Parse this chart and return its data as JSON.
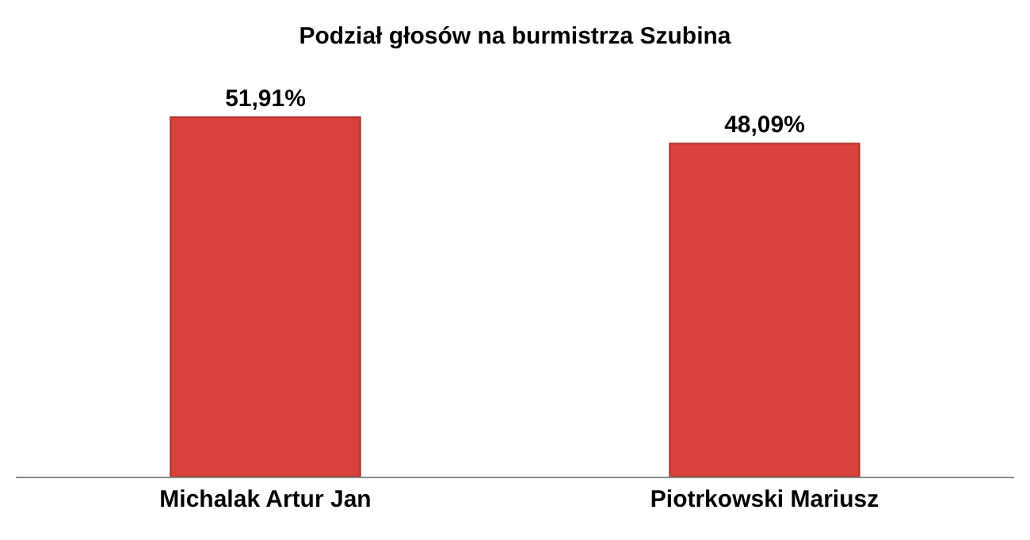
{
  "chart_data": {
    "type": "bar",
    "title": "Podział głosów na burmistrza Szubina",
    "categories": [
      "Michalak Artur Jan",
      "Piotrkowski Mariusz"
    ],
    "values": [
      51.91,
      48.09
    ],
    "value_labels": [
      "51,91%",
      "48,09%"
    ],
    "color": "#d9413d"
  }
}
